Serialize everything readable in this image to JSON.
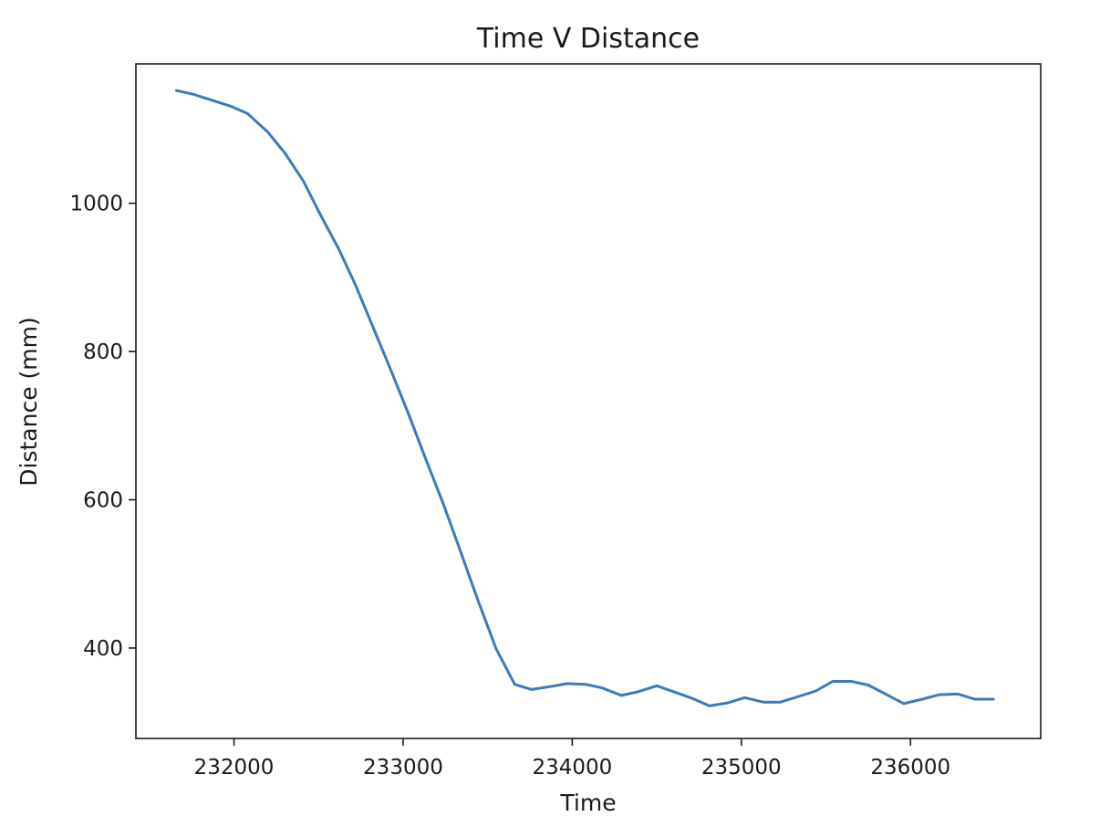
{
  "chart_data": {
    "type": "line",
    "title": "Time V Distance",
    "xlabel": "Time",
    "ylabel": "Distance (mm)",
    "xlim": [
      231420,
      236770
    ],
    "ylim": [
      278,
      1188
    ],
    "grid": false,
    "xticks": [
      232000,
      233000,
      234000,
      235000,
      236000
    ],
    "yticks": [
      400,
      600,
      800,
      1000
    ],
    "series": [
      {
        "color": "#3d7ab8",
        "x": [
          231660,
          231760,
          231870,
          231980,
          232080,
          232200,
          232300,
          232410,
          232510,
          232620,
          232720,
          232820,
          232920,
          233030,
          233130,
          233240,
          233340,
          233440,
          233550,
          233660,
          233760,
          233870,
          233970,
          234080,
          234180,
          234290,
          234390,
          234500,
          234600,
          234710,
          234810,
          234920,
          235020,
          235130,
          235230,
          235330,
          235440,
          235540,
          235650,
          235750,
          235860,
          235960,
          236070,
          236170,
          236280,
          236380,
          236490
        ],
        "y": [
          1152,
          1147,
          1139,
          1131,
          1121,
          1096,
          1068,
          1030,
          985,
          938,
          889,
          834,
          779,
          717,
          657,
          593,
          530,
          466,
          399,
          351,
          344,
          348,
          352,
          351,
          346,
          336,
          341,
          349,
          341,
          332,
          322,
          326,
          333,
          327,
          327,
          334,
          342,
          355,
          355,
          350,
          337,
          325,
          331,
          337,
          338,
          331,
          331
        ]
      }
    ]
  }
}
